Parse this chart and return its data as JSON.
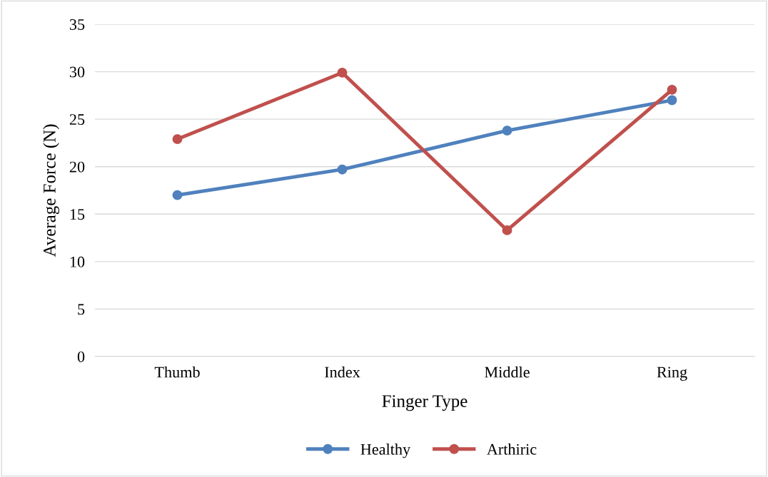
{
  "chart_data": {
    "type": "line",
    "xlabel": "Finger Type",
    "ylabel": "Average Force (N)",
    "categories": [
      "Thumb",
      "Index",
      "Middle",
      "Ring"
    ],
    "series": [
      {
        "name": "Healthy",
        "color": "#4f81bd",
        "values": [
          17.0,
          19.7,
          23.8,
          27.0
        ]
      },
      {
        "name": "Arthiric",
        "color": "#c0504d",
        "values": [
          22.9,
          29.9,
          13.3,
          28.1
        ]
      }
    ],
    "ylim": [
      0,
      35
    ],
    "yticks": [
      0,
      5,
      10,
      15,
      20,
      25,
      30,
      35
    ],
    "grid": "y",
    "legend": "bottom",
    "marker": "circle",
    "line_style": "solid"
  }
}
